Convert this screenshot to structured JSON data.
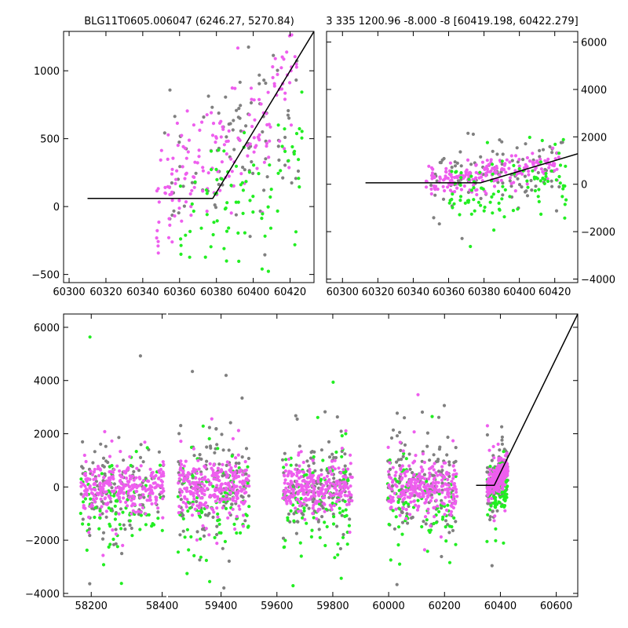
{
  "chart_data": [
    {
      "type": "scatter",
      "title": "BLG11T0605.006047 (6246.27, 5270.84)",
      "xlim": [
        60297,
        60433
      ],
      "ylim": [
        -560,
        1290
      ],
      "xticks": [
        60300,
        60320,
        60340,
        60360,
        60380,
        60400,
        60420
      ],
      "yticks": [
        -500,
        0,
        500,
        1000
      ],
      "ytick_side": "left",
      "grid": false,
      "model_line": {
        "x": [
          60310,
          60378,
          60433
        ],
        "y": [
          60,
          60,
          1290
        ]
      },
      "series": [
        {
          "color": "#808080",
          "seed": 11,
          "n": 100,
          "x_range": [
            60350,
            60425
          ],
          "base": {
            "x0": 60350,
            "x1": 60425,
            "y0": 160,
            "y1": 660
          },
          "spread": 300
        },
        {
          "color": "#ee5eee",
          "seed": 23,
          "n": 170,
          "x_range": [
            60347,
            60424
          ],
          "base": {
            "x0": 60347,
            "x1": 60424,
            "y0": 60,
            "y1": 820
          },
          "spread": 230
        },
        {
          "color": "#22ee22",
          "seed": 37,
          "n": 90,
          "x_range": [
            60360,
            60427
          ],
          "base": {
            "x0": 60360,
            "x1": 60427,
            "y0": -220,
            "y1": 400
          },
          "spread": 260
        }
      ]
    },
    {
      "type": "scatter",
      "title": "3 335 1200.96 -8.000 -8 [60419.198, 60422.279]",
      "xlim": [
        60291,
        60433
      ],
      "ylim": [
        -4150,
        6450
      ],
      "xticks": [
        60300,
        60320,
        60340,
        60360,
        60380,
        60400,
        60420
      ],
      "yticks": [
        -4000,
        -2000,
        0,
        2000,
        4000,
        6000
      ],
      "ytick_side": "right",
      "grid": false,
      "model_line": {
        "x": [
          60313,
          60378,
          60433
        ],
        "y": [
          60,
          60,
          1290
        ]
      },
      "series": [
        {
          "color": "#808080",
          "seed": 41,
          "n": 100,
          "x_range": [
            60350,
            60425
          ],
          "base": {
            "x0": 60350,
            "x1": 60425,
            "y0": 150,
            "y1": 700
          },
          "spread": 700
        },
        {
          "color": "#ee5eee",
          "seed": 53,
          "n": 200,
          "x_range": [
            60347,
            60424
          ],
          "base": {
            "x0": 60347,
            "x1": 60424,
            "y0": 60,
            "y1": 850
          },
          "spread": 300
        },
        {
          "color": "#22ee22",
          "seed": 67,
          "n": 100,
          "x_range": [
            60360,
            60427
          ],
          "base": {
            "x0": 60360,
            "x1": 60427,
            "y0": -400,
            "y1": 100
          },
          "spread": 800
        }
      ]
    },
    {
      "type": "scatter",
      "title": "",
      "xlim": [
        58122,
        60677
      ],
      "ylim": [
        -4120,
        6500
      ],
      "x_breaks": [
        {
          "from": 58412,
          "to": 59210
        }
      ],
      "xticks": [
        58200,
        58400,
        59400,
        59600,
        59800,
        60000,
        60200,
        60400,
        60600
      ],
      "yticks": [
        -4000,
        -2000,
        0,
        2000,
        4000,
        6000
      ],
      "ytick_side": "left",
      "grid": false,
      "model_line": {
        "x": [
          60313,
          60378,
          60677
        ],
        "y": [
          60,
          60,
          6500
        ]
      },
      "seasons": [
        [
          58170,
          58405
        ],
        [
          59245,
          59500
        ],
        [
          59620,
          59870
        ],
        [
          59995,
          60245
        ],
        [
          60352,
          60427
        ]
      ],
      "series": [
        {
          "color": "#808080",
          "seed": 71,
          "n": 650,
          "spread": 900
        },
        {
          "color": "#22ee22",
          "seed": 83,
          "n": 500,
          "spread": 900,
          "offset": -450
        },
        {
          "color": "#ee5eee",
          "seed": 97,
          "n": 1300,
          "spread": 450
        }
      ]
    }
  ]
}
